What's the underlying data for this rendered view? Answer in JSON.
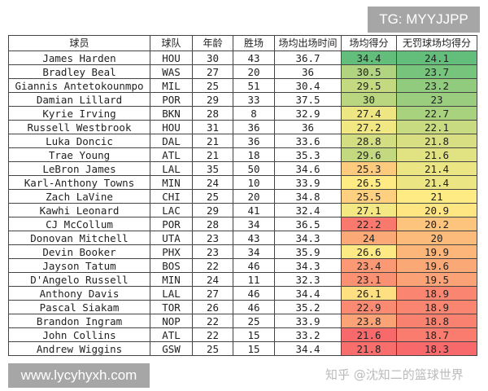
{
  "headers": [
    "球员",
    "球队",
    "年龄",
    "胜场",
    "场均出场时间",
    "场均得分",
    "无罚球场均得分"
  ],
  "rows": [
    [
      "James Harden",
      "HOU",
      "30",
      "43",
      "36.7",
      "34.4",
      "24.1"
    ],
    [
      "Bradley Beal",
      "WAS",
      "27",
      "20",
      "36",
      "30.5",
      "23.7"
    ],
    [
      "Giannis Antetokounmpo",
      "MIL",
      "25",
      "51",
      "30.4",
      "29.5",
      "23.2"
    ],
    [
      "Damian Lillard",
      "POR",
      "29",
      "33",
      "37.5",
      "30",
      "23"
    ],
    [
      "Kyrie Irving",
      "BKN",
      "28",
      "8",
      "32.9",
      "27.4",
      "22.7"
    ],
    [
      "Russell Westbrook",
      "HOU",
      "31",
      "36",
      "36",
      "27.2",
      "22.1"
    ],
    [
      "Luka Doncic",
      "DAL",
      "21",
      "36",
      "33.6",
      "28.8",
      "21.8"
    ],
    [
      "Trae Young",
      "ATL",
      "21",
      "18",
      "35.3",
      "29.6",
      "21.6"
    ],
    [
      "LeBron James",
      "LAL",
      "35",
      "50",
      "34.6",
      "25.3",
      "21.4"
    ],
    [
      "Karl-Anthony Towns",
      "MIN",
      "24",
      "10",
      "33.9",
      "26.5",
      "21.4"
    ],
    [
      "Zach LaVine",
      "CHI",
      "25",
      "20",
      "34.8",
      "25.5",
      "21"
    ],
    [
      "Kawhi Leonard",
      "LAC",
      "29",
      "41",
      "32.4",
      "27.1",
      "20.9"
    ],
    [
      "CJ McCollum",
      "POR",
      "28",
      "34",
      "36.5",
      "22.2",
      "20.2"
    ],
    [
      "Donovan Mitchell",
      "UTA",
      "23",
      "43",
      "34.3",
      "24",
      "20"
    ],
    [
      "Devin Booker",
      "PHX",
      "23",
      "34",
      "35.9",
      "26.6",
      "19.9"
    ],
    [
      "Jayson Tatum",
      "BOS",
      "22",
      "46",
      "34.3",
      "23.4",
      "19.6"
    ],
    [
      "D'Angelo Russell",
      "MIN",
      "24",
      "11",
      "32.3",
      "23.1",
      "19.5"
    ],
    [
      "Anthony Davis",
      "LAL",
      "27",
      "46",
      "34.4",
      "26.1",
      "18.9"
    ],
    [
      "Pascal Siakam",
      "TOR",
      "26",
      "46",
      "35.2",
      "22.9",
      "18.9"
    ],
    [
      "Brandon Ingram",
      "NOP",
      "22",
      "25",
      "33.9",
      "23.8",
      "18.8"
    ],
    [
      "John Collins",
      "ATL",
      "22",
      "15",
      "33.2",
      "21.6",
      "18.7"
    ],
    [
      "Andrew Wiggins",
      "GSW",
      "25",
      "15",
      "34.4",
      "21.8",
      "18.3"
    ]
  ],
  "color_scale": {
    "low": "#F8696B",
    "mid": "#FFEB84",
    "high": "#63BE7B"
  },
  "overlays": {
    "tg_label": "TG: MYYJJPP",
    "site_label": "www.lycyhyxh.com",
    "watermark": "知乎 @沈知二的篮球世界"
  }
}
